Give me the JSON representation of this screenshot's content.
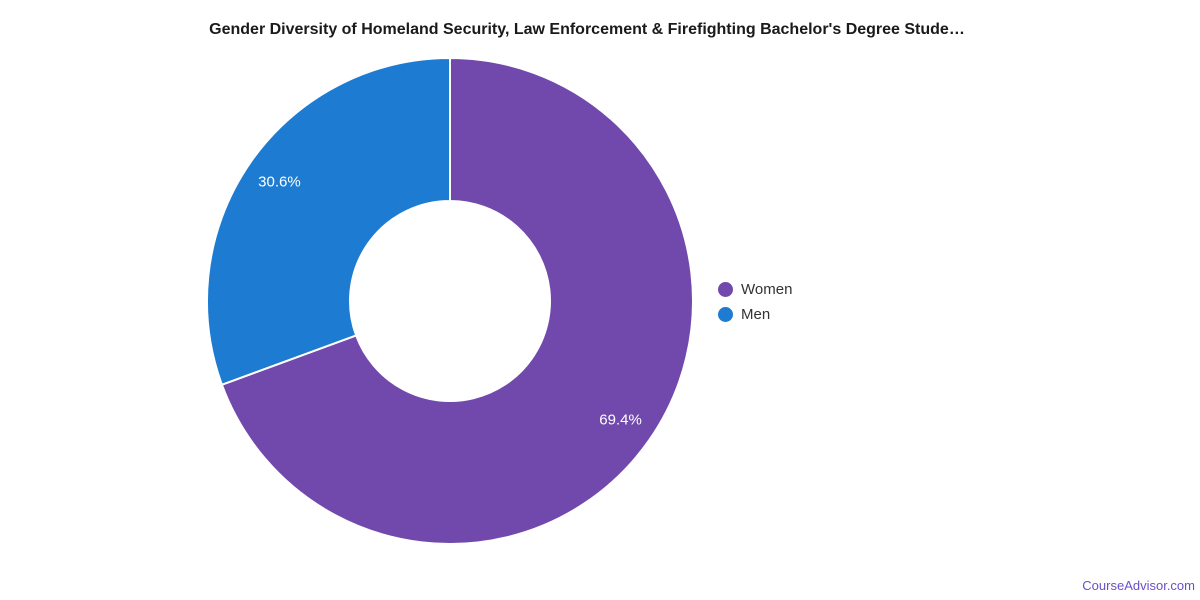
{
  "title": "Gender Diversity of Homeland Security, Law Enforcement & Firefighting Bachelor's Degree Stude…",
  "watermark": "CourseAdvisor.com",
  "legend": {
    "items": [
      {
        "label": "Women",
        "color": "#7149ad"
      },
      {
        "label": "Men",
        "color": "#1d7cd2"
      }
    ]
  },
  "chart_data": {
    "type": "pie",
    "subtype": "donut",
    "title": "Gender Diversity of Homeland Security, Law Enforcement & Firefighting Bachelor's Degree Stude…",
    "categories": [
      "Women",
      "Men"
    ],
    "values": [
      69.4,
      30.6
    ],
    "labels": [
      "69.4%",
      "30.6%"
    ],
    "colors": [
      "#7149ad",
      "#1d7cd2"
    ],
    "unit": "%",
    "legend_position": "right",
    "start_angle_deg": 0,
    "direction": "clockwise",
    "inner_radius_pct": 41,
    "slice_border_color": "#ffffff"
  }
}
